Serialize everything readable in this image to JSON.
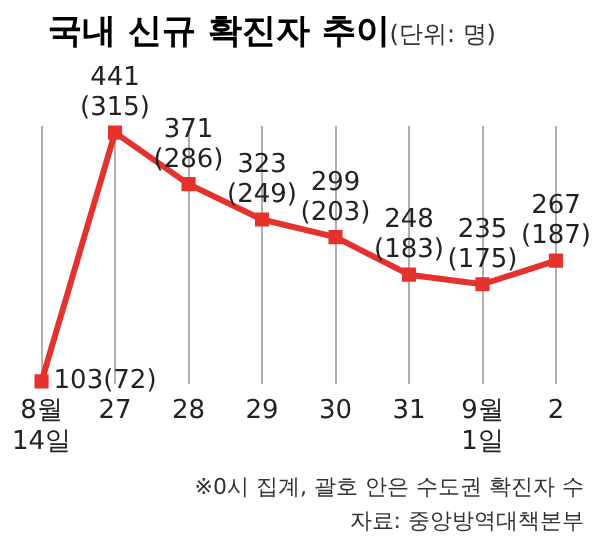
{
  "chart_data": {
    "type": "line",
    "title": "국내 신규 확진자 추이",
    "subtitle": "(단위: 명)",
    "categories": [
      "8월\n14일",
      "27",
      "28",
      "29",
      "30",
      "31",
      "9월\n1일",
      "2"
    ],
    "series": [
      {
        "color": "#e5322d",
        "values": [
          103,
          441,
          371,
          323,
          299,
          248,
          235,
          267
        ],
        "value_labels": [
          "103(72)",
          "441\n(315)",
          "371\n(286)",
          "323\n(249)",
          "299\n(203)",
          "248\n(183)",
          "235\n(175)",
          "267\n(187)"
        ]
      }
    ],
    "marker": "square",
    "grid": "x",
    "legend": false,
    "annotations": [
      "※0시 집계, 괄호 안은 수도권 확진자 수",
      "자료: 중앙방역대책본부"
    ]
  }
}
